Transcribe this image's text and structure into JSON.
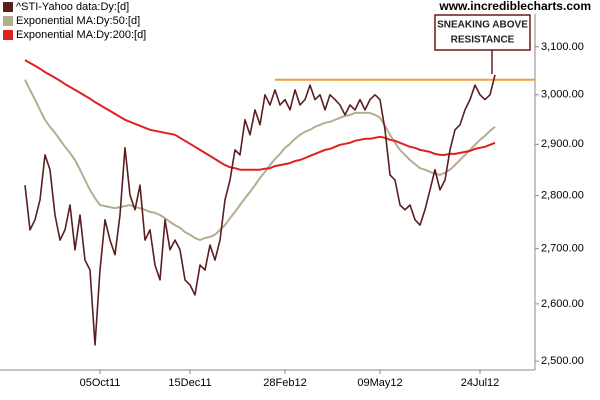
{
  "chart_data": {
    "type": "line",
    "log_scale": true,
    "watermark": "www.incrediblecharts.com",
    "categories": [
      null,
      null,
      null,
      null,
      null,
      null,
      null,
      null,
      null,
      null,
      null,
      null,
      null,
      null,
      null,
      "05Oct11",
      null,
      null,
      null,
      null,
      null,
      null,
      null,
      null,
      null,
      null,
      null,
      null,
      null,
      null,
      null,
      null,
      null,
      "15Dec11",
      null,
      null,
      null,
      null,
      null,
      null,
      null,
      null,
      null,
      null,
      null,
      null,
      null,
      null,
      null,
      null,
      null,
      null,
      "28Feb12",
      null,
      null,
      null,
      null,
      null,
      null,
      null,
      null,
      null,
      null,
      null,
      null,
      null,
      null,
      null,
      null,
      null,
      null,
      "09May12",
      null,
      null,
      null,
      null,
      null,
      null,
      null,
      null,
      null,
      null,
      null,
      null,
      null,
      null,
      null,
      null,
      null,
      null,
      null,
      "24Jul12",
      null,
      null,
      null
    ],
    "series": [
      {
        "name": "^STI-Yahoo data:Dy:[d]",
        "color": "#5a1e1e",
        "width": 1.6,
        "values": [
          2820,
          2735,
          2754,
          2792,
          2879,
          2850,
          2763,
          2716,
          2735,
          2782,
          2698,
          2763,
          2679,
          2661,
          2528,
          2661,
          2754,
          2716,
          2689,
          2763,
          2893,
          2801,
          2773,
          2820,
          2716,
          2735,
          2670,
          2643,
          2754,
          2698,
          2716,
          2698,
          2643,
          2634,
          2616,
          2670,
          2661,
          2707,
          2679,
          2716,
          2792,
          2830,
          2889,
          2879,
          2949,
          2919,
          2969,
          2939,
          3000,
          2979,
          3010,
          2979,
          2990,
          2969,
          3010,
          2979,
          2990,
          3020,
          2990,
          3000,
          2969,
          3000,
          2990,
          2979,
          2959,
          2979,
          2969,
          2990,
          2969,
          2990,
          3000,
          2990,
          2929,
          2840,
          2830,
          2782,
          2773,
          2782,
          2754,
          2744,
          2773,
          2811,
          2850,
          2811,
          2830,
          2889,
          2929,
          2939,
          2969,
          2990,
          3020,
          3000,
          2990,
          3000,
          3041
        ]
      },
      {
        "name": "Exponential MA:Dy:50:[d]",
        "color": "#b5ad8f",
        "width": 2,
        "values": [
          3031,
          3010,
          2990,
          2969,
          2949,
          2935,
          2923,
          2909,
          2895,
          2883,
          2869,
          2850,
          2830,
          2811,
          2795,
          2782,
          2780,
          2778,
          2776,
          2778,
          2780,
          2782,
          2778,
          2776,
          2773,
          2769,
          2767,
          2763,
          2757,
          2750,
          2744,
          2739,
          2731,
          2726,
          2720,
          2716,
          2720,
          2722,
          2726,
          2735,
          2744,
          2757,
          2769,
          2782,
          2795,
          2807,
          2820,
          2834,
          2846,
          2859,
          2871,
          2881,
          2893,
          2901,
          2911,
          2919,
          2925,
          2929,
          2935,
          2939,
          2943,
          2945,
          2949,
          2953,
          2957,
          2959,
          2963,
          2963,
          2963,
          2963,
          2959,
          2953,
          2937,
          2919,
          2903,
          2889,
          2879,
          2869,
          2861,
          2853,
          2850,
          2846,
          2842,
          2840,
          2844,
          2850,
          2859,
          2869,
          2879,
          2889,
          2899,
          2909,
          2917,
          2927,
          2935
        ]
      },
      {
        "name": "Exponential MA:Dy:200:[d]",
        "color": "#e02020",
        "width": 2,
        "values": [
          3072,
          3066,
          3060,
          3054,
          3047,
          3041,
          3035,
          3029,
          3022,
          3016,
          3010,
          3004,
          2998,
          2992,
          2985,
          2979,
          2973,
          2967,
          2961,
          2955,
          2949,
          2945,
          2941,
          2937,
          2933,
          2929,
          2927,
          2925,
          2923,
          2921,
          2919,
          2913,
          2907,
          2901,
          2895,
          2889,
          2883,
          2877,
          2871,
          2865,
          2859,
          2855,
          2853,
          2850,
          2850,
          2850,
          2850,
          2850,
          2852,
          2853,
          2857,
          2859,
          2861,
          2863,
          2867,
          2869,
          2873,
          2877,
          2881,
          2885,
          2889,
          2891,
          2895,
          2899,
          2901,
          2903,
          2907,
          2909,
          2911,
          2911,
          2913,
          2915,
          2913,
          2909,
          2907,
          2903,
          2899,
          2895,
          2893,
          2889,
          2887,
          2885,
          2881,
          2879,
          2879,
          2881,
          2881,
          2883,
          2885,
          2887,
          2891,
          2893,
          2895,
          2899,
          2903
        ]
      }
    ],
    "hline": {
      "value": 3031,
      "color": "#f0a030"
    },
    "annotation": {
      "lines": [
        "SNEAKING ABOVE",
        "RESISTANCE"
      ],
      "color": "#6b1a1a"
    },
    "ylim": [
      2485,
      3201
    ],
    "yticks": [
      {
        "value": 2500,
        "label": "2,500.00"
      },
      {
        "value": 2600,
        "label": "2,600.00"
      },
      {
        "value": 2700,
        "label": "2,700.00"
      },
      {
        "value": 2800,
        "label": "2,800.00"
      },
      {
        "value": 2900,
        "label": "2,900.00"
      },
      {
        "value": 3000,
        "label": "3,000.00"
      },
      {
        "value": 3100,
        "label": "3,100.00"
      }
    ],
    "legend": "top-left"
  }
}
